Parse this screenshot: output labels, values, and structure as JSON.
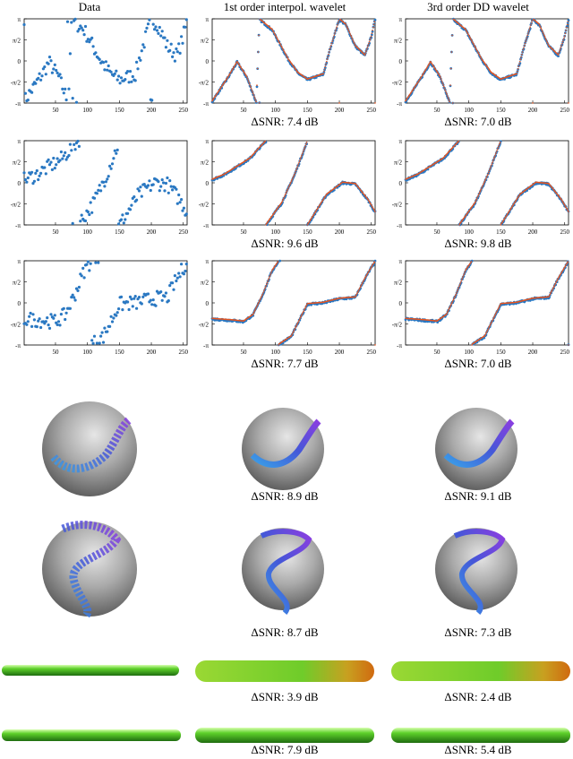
{
  "column_titles": [
    "Data",
    "1st order interpol. wavelet",
    "3rd order DD wavelet"
  ],
  "chart_data": {
    "type": "scatter",
    "x_ticks": [
      "50",
      "100",
      "150",
      "200",
      "250"
    ],
    "y_ticks": [
      "-π",
      "-π/2",
      "0",
      "π/2",
      "π"
    ],
    "xlim": [
      1,
      256
    ],
    "ylim": [
      -3.1416,
      3.1416
    ],
    "colors": {
      "data": "#2a78c2",
      "reference": "#e8551f"
    },
    "rows": [
      {
        "snr": [
          "ΔSNR: 7.4 dB",
          "ΔSNR: 7.0 dB"
        ],
        "keypoints": [
          [
            0,
            -3.1
          ],
          [
            25,
            -1.3
          ],
          [
            40,
            -0.1
          ],
          [
            55,
            -1.2
          ],
          [
            70,
            -3.1
          ],
          [
            75,
            3.1
          ],
          [
            95,
            2.3
          ],
          [
            120,
            0.1
          ],
          [
            135,
            -0.9
          ],
          [
            150,
            -1.4
          ],
          [
            175,
            -1.0
          ],
          [
            185,
            0.8
          ],
          [
            200,
            3.1
          ],
          [
            210,
            2.7
          ],
          [
            225,
            1.1
          ],
          [
            240,
            0.4
          ],
          [
            250,
            1.8
          ],
          [
            256,
            3.1
          ]
        ]
      },
      {
        "snr": [
          "ΔSNR: 9.6 dB",
          "ΔSNR: 9.8 dB"
        ],
        "keypoints": [
          [
            0,
            0.2
          ],
          [
            20,
            0.6
          ],
          [
            40,
            1.2
          ],
          [
            60,
            1.8
          ],
          [
            75,
            2.6
          ],
          [
            85,
            3.1
          ],
          [
            86,
            -3.1
          ],
          [
            110,
            -1.5
          ],
          [
            130,
            0.6
          ],
          [
            150,
            3.1
          ],
          [
            151,
            -3.1
          ],
          [
            180,
            -0.9
          ],
          [
            205,
            0.0
          ],
          [
            225,
            -0.1
          ],
          [
            245,
            -1.3
          ],
          [
            256,
            -2.2
          ]
        ]
      },
      {
        "snr": [
          "ΔSNR: 7.7 dB",
          "ΔSNR: 7.0 dB"
        ],
        "keypoints": [
          [
            0,
            -1.2
          ],
          [
            30,
            -1.3
          ],
          [
            50,
            -1.4
          ],
          [
            65,
            -0.9
          ],
          [
            80,
            0.6
          ],
          [
            95,
            2.4
          ],
          [
            105,
            3.1
          ],
          [
            106,
            -3.1
          ],
          [
            125,
            -2.5
          ],
          [
            150,
            -0.1
          ],
          [
            175,
            0.0
          ],
          [
            200,
            0.3
          ],
          [
            225,
            0.4
          ],
          [
            240,
            1.8
          ],
          [
            256,
            3.1
          ]
        ]
      }
    ]
  },
  "sphere_captions": [
    [
      "ΔSNR: 8.9 dB",
      "ΔSNR: 9.1 dB"
    ],
    [
      "ΔSNR: 8.7 dB",
      "ΔSNR: 7.3 dB"
    ]
  ],
  "tube_captions": [
    [
      "ΔSNR: 3.9 dB",
      "ΔSNR: 2.4 dB"
    ],
    [
      "ΔSNR: 7.9 dB",
      "ΔSNR: 5.4 dB"
    ]
  ]
}
